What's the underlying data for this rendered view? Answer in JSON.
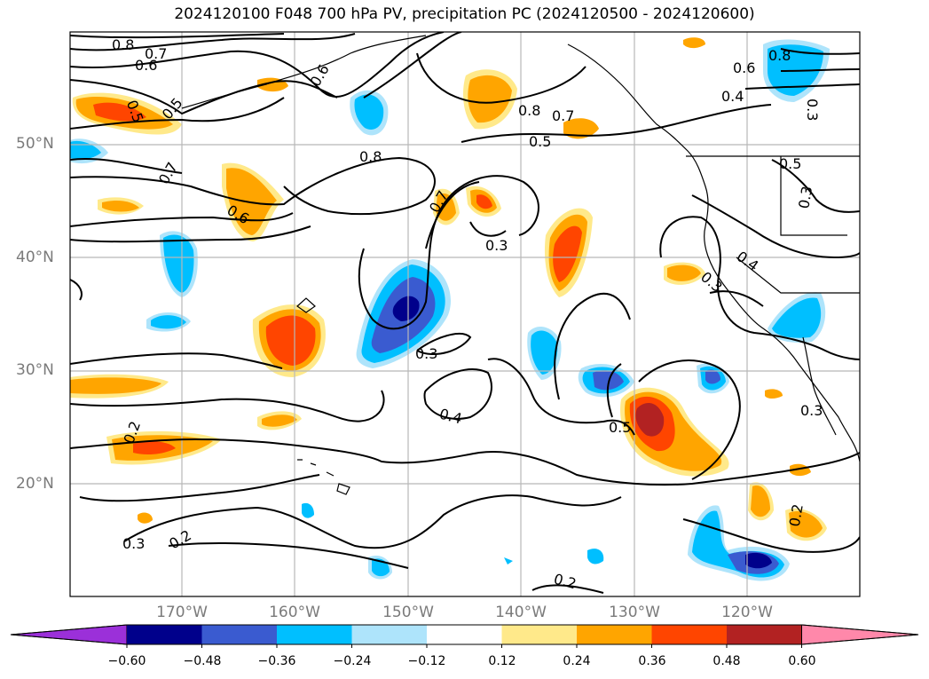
{
  "title": "2024120100 F048 700 hPa PV, precipitation PC (2024120500 - 2024120600)",
  "lat_labels": [
    "50°N",
    "40°N",
    "30°N",
    "20°N"
  ],
  "lon_labels": [
    "170°W",
    "160°W",
    "150°W",
    "140°W",
    "130°W",
    "120°W"
  ],
  "contour_labels": [
    "0.8",
    "0.7",
    "0.6",
    "0.6",
    "0.5",
    "0.5",
    "0.7",
    "0.8",
    "0.6",
    "0.7",
    "0.8",
    "0.7",
    "0.5",
    "0.8",
    "0.6",
    "0.4",
    "0.3",
    "0.5",
    "0.3",
    "0.3",
    "0.3",
    "0.4",
    "0.3",
    "0.5",
    "0.4",
    "0.2",
    "0.3",
    "0.2",
    "0.2",
    "0.2"
  ],
  "colorbar": {
    "ticks": [
      "−0.60",
      "−0.48",
      "−0.36",
      "−0.24",
      "−0.12",
      "0.12",
      "0.24",
      "0.36",
      "0.48",
      "0.60"
    ],
    "colors": [
      "#9b30d9",
      "#00008b",
      "#3a5bd0",
      "#00bfff",
      "#aee4fb",
      "#ffffff",
      "#ffe98a",
      "#ffa500",
      "#ff4500",
      "#b22222",
      "#ff88aa"
    ]
  }
}
